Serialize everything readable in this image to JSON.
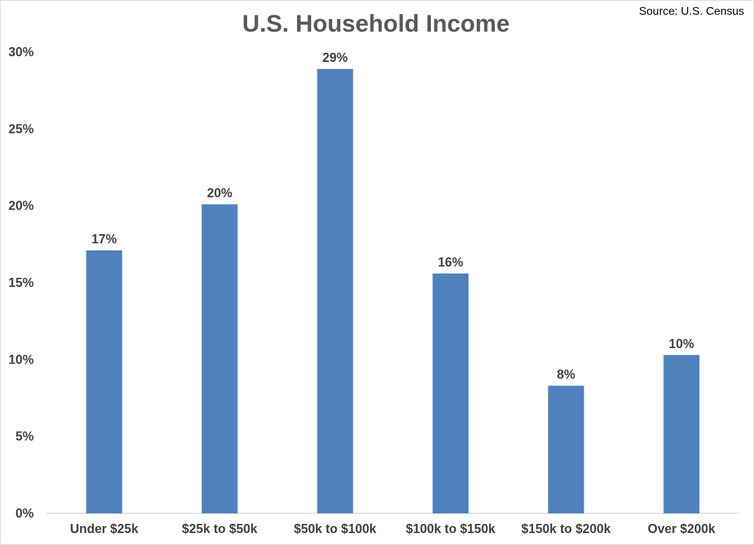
{
  "chart_data": {
    "type": "bar",
    "title": "U.S. Household Income",
    "source": "Source: U.S. Census",
    "categories": [
      "Under $25k",
      "$25k to $50k",
      "$50k to $100k",
      "$100k to $150k",
      "$150k to $200k",
      "Over $200k"
    ],
    "values": [
      17.1,
      20.1,
      28.9,
      15.6,
      8.3,
      10.3
    ],
    "data_labels": [
      "17%",
      "20%",
      "29%",
      "16%",
      "8%",
      "10%"
    ],
    "y_ticks": [
      "0%",
      "5%",
      "10%",
      "15%",
      "20%",
      "25%",
      "30%"
    ],
    "ylim": [
      0,
      30
    ],
    "grid": false,
    "legend": "none",
    "bar_color": "#4f81bd"
  }
}
